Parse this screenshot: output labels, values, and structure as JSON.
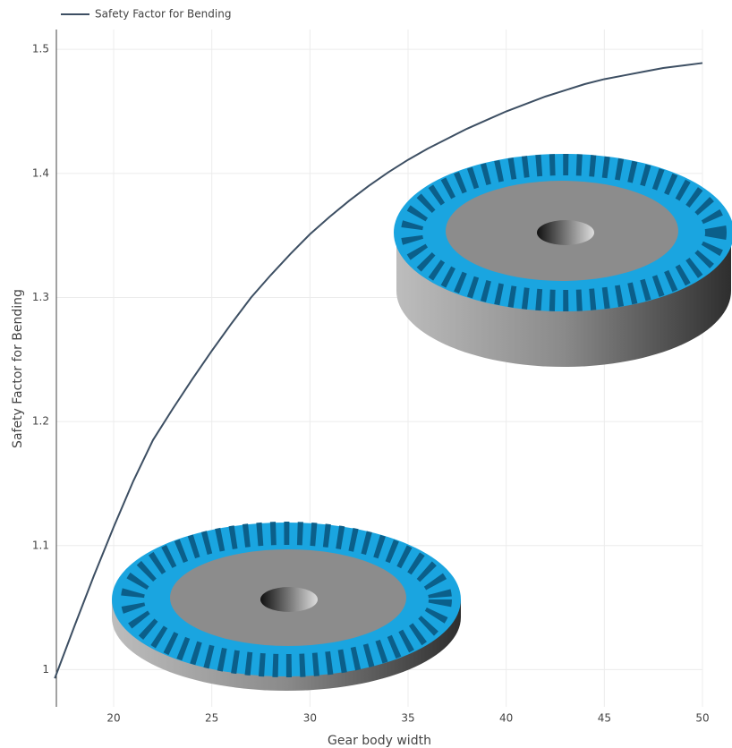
{
  "chart_data": {
    "type": "line",
    "legend": "top-left",
    "grid": true,
    "x_label": "Gear body width",
    "y_label": "Safety Factor for Bending",
    "x": [
      17,
      18,
      19,
      20,
      21,
      22,
      23,
      24,
      25,
      26,
      27,
      28,
      29,
      30,
      31,
      32,
      33,
      34,
      35,
      36,
      37,
      38,
      39,
      40,
      41,
      42,
      43,
      44,
      45,
      46,
      47,
      48,
      49,
      50
    ],
    "series": [
      {
        "name": "Safety Factor for Bending",
        "color": "#3d4f63",
        "values": [
          0.993,
          1.035,
          1.076,
          1.115,
          1.152,
          1.185,
          1.21,
          1.234,
          1.257,
          1.279,
          1.3,
          1.318,
          1.335,
          1.351,
          1.365,
          1.378,
          1.39,
          1.401,
          1.411,
          1.42,
          1.428,
          1.436,
          1.443,
          1.45,
          1.456,
          1.462,
          1.467,
          1.472,
          1.476,
          1.479,
          1.482,
          1.485,
          1.487,
          1.489
        ]
      }
    ],
    "xlim": [
      17.08,
      50
    ],
    "xticks": [
      20,
      25,
      30,
      35,
      40,
      45,
      50
    ],
    "ylim": [
      0.97,
      1.516
    ],
    "yticks": [
      1,
      1.1,
      1.2,
      1.3,
      1.4,
      1.5
    ]
  }
}
